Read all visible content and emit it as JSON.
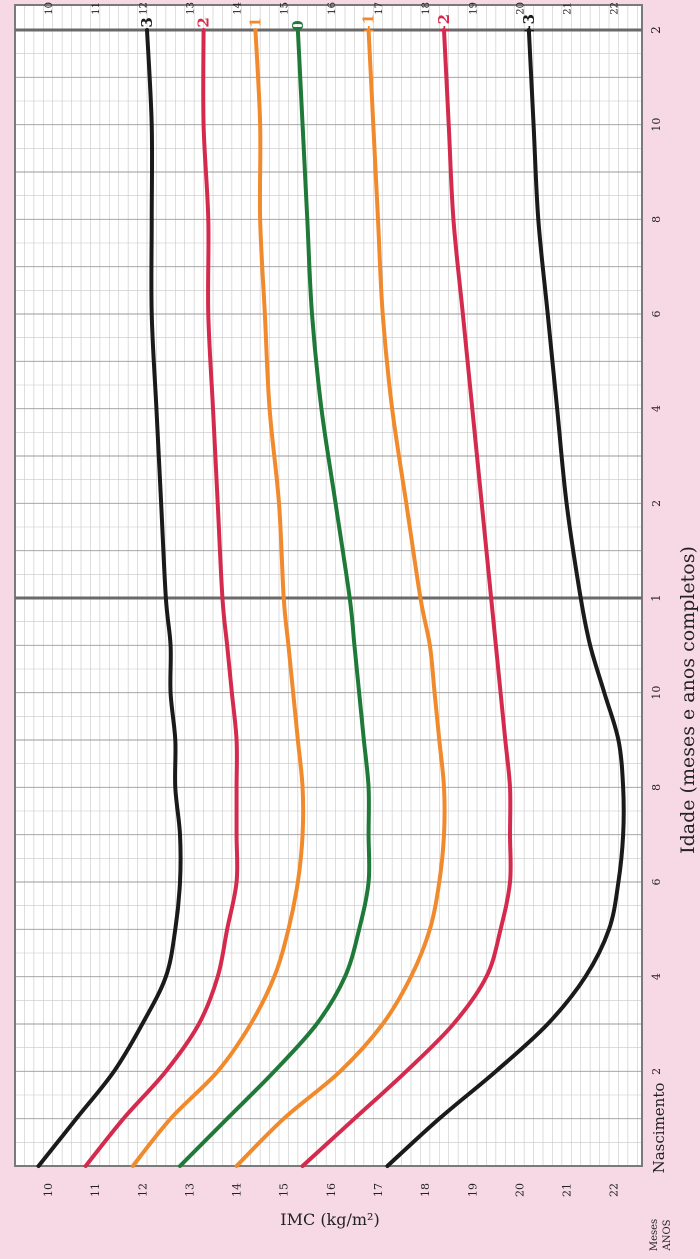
{
  "chart_data": {
    "type": "line",
    "xlabel": "Idade (meses e anos completos)",
    "ylabel": "IMC (kg/m²)",
    "birth_label": "Nascimento",
    "corner_labels": [
      "Meses",
      "ANOS"
    ],
    "x_month_ticks": [
      {
        "month": 2,
        "label": "2"
      },
      {
        "month": 4,
        "label": "4"
      },
      {
        "month": 6,
        "label": "6"
      },
      {
        "month": 8,
        "label": "8"
      },
      {
        "month": 10,
        "label": "10"
      },
      {
        "month": 14,
        "label": "2"
      },
      {
        "month": 16,
        "label": "4"
      },
      {
        "month": 18,
        "label": "6"
      },
      {
        "month": 20,
        "label": "8"
      },
      {
        "month": 22,
        "label": "10"
      }
    ],
    "x_year_ticks": [
      {
        "month": 12,
        "label": "1"
      },
      {
        "month": 24,
        "label": "2"
      }
    ],
    "xlim": [
      0,
      24
    ],
    "ylim": [
      9.3,
      22.6
    ],
    "y_ticks": [
      10,
      11,
      12,
      13,
      14,
      15,
      16,
      17,
      18,
      19,
      20,
      21,
      22
    ],
    "grid": true,
    "series": [
      {
        "name": "+3",
        "color": "#1a1a1a",
        "x": [
          0,
          1,
          2,
          3,
          4,
          5,
          6,
          7,
          8,
          9,
          10,
          11,
          12,
          14,
          16,
          18,
          20,
          22,
          24
        ],
        "y": [
          17.2,
          18.3,
          19.5,
          20.6,
          21.4,
          21.9,
          22.1,
          22.2,
          22.2,
          22.1,
          21.8,
          21.5,
          21.3,
          21.0,
          20.8,
          20.6,
          20.4,
          20.3,
          20.2
        ]
      },
      {
        "name": "+2",
        "color": "#d42a4e",
        "x": [
          0,
          1,
          2,
          3,
          4,
          5,
          6,
          7,
          8,
          9,
          10,
          11,
          12,
          14,
          16,
          18,
          20,
          22,
          24
        ],
        "y": [
          15.4,
          16.5,
          17.6,
          18.6,
          19.3,
          19.6,
          19.8,
          19.8,
          19.8,
          19.7,
          19.6,
          19.5,
          19.4,
          19.2,
          19.0,
          18.8,
          18.6,
          18.5,
          18.4
        ]
      },
      {
        "name": "+1",
        "color": "#f08a2c",
        "x": [
          0,
          1,
          2,
          3,
          4,
          5,
          6,
          7,
          8,
          9,
          10,
          11,
          12,
          14,
          16,
          18,
          20,
          22,
          24
        ],
        "y": [
          14.0,
          15.0,
          16.2,
          17.1,
          17.7,
          18.1,
          18.3,
          18.4,
          18.4,
          18.3,
          18.2,
          18.1,
          17.9,
          17.6,
          17.3,
          17.1,
          17.0,
          16.9,
          16.8
        ]
      },
      {
        "name": "0",
        "color": "#1f7a3a",
        "x": [
          0,
          1,
          2,
          3,
          4,
          5,
          6,
          7,
          8,
          9,
          10,
          11,
          12,
          14,
          16,
          18,
          20,
          22,
          24
        ],
        "y": [
          12.8,
          13.8,
          14.8,
          15.7,
          16.3,
          16.6,
          16.8,
          16.8,
          16.8,
          16.7,
          16.6,
          16.5,
          16.4,
          16.1,
          15.8,
          15.6,
          15.5,
          15.4,
          15.3
        ]
      },
      {
        "name": "-1",
        "color": "#f08a2c",
        "x": [
          0,
          1,
          2,
          3,
          4,
          5,
          6,
          7,
          8,
          9,
          10,
          11,
          12,
          14,
          16,
          18,
          20,
          22,
          24
        ],
        "y": [
          11.8,
          12.6,
          13.6,
          14.3,
          14.8,
          15.1,
          15.3,
          15.4,
          15.4,
          15.3,
          15.2,
          15.1,
          15.0,
          14.9,
          14.7,
          14.6,
          14.5,
          14.5,
          14.4
        ]
      },
      {
        "name": "-2",
        "color": "#d42a4e",
        "x": [
          0,
          1,
          2,
          3,
          4,
          5,
          6,
          7,
          8,
          9,
          10,
          11,
          12,
          14,
          16,
          18,
          20,
          22,
          24
        ],
        "y": [
          10.8,
          11.6,
          12.5,
          13.2,
          13.6,
          13.8,
          14.0,
          14.0,
          14.0,
          14.0,
          13.9,
          13.8,
          13.7,
          13.6,
          13.5,
          13.4,
          13.4,
          13.3,
          13.3
        ]
      },
      {
        "name": "-3",
        "color": "#1a1a1a",
        "x": [
          0,
          1,
          2,
          3,
          4,
          5,
          6,
          7,
          8,
          9,
          10,
          11,
          12,
          14,
          16,
          18,
          20,
          22,
          24
        ],
        "y": [
          9.8,
          10.6,
          11.4,
          12.0,
          12.5,
          12.7,
          12.8,
          12.8,
          12.7,
          12.7,
          12.6,
          12.6,
          12.5,
          12.4,
          12.3,
          12.2,
          12.2,
          12.2,
          12.1
        ]
      }
    ]
  }
}
